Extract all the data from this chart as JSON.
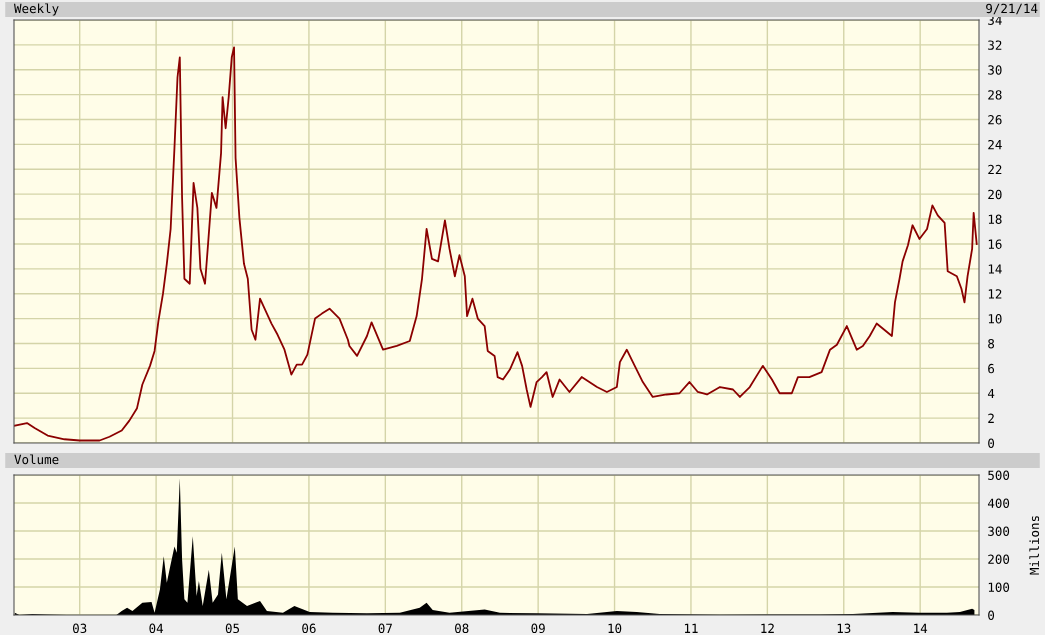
{
  "chart_data": [
    {
      "type": "line",
      "title": "Weekly",
      "annotations": [
        "9/21/14"
      ],
      "tick_labels": "y",
      "grid": true,
      "xlim": [
        2002.14,
        2014.77
      ],
      "xticks": [
        {
          "value": 2003,
          "label": null
        },
        {
          "value": 2004,
          "label": null
        },
        {
          "value": 2005,
          "label": null
        },
        {
          "value": 2006,
          "label": null
        },
        {
          "value": 2007,
          "label": null
        },
        {
          "value": 2008,
          "label": null
        },
        {
          "value": 2009,
          "label": null
        },
        {
          "value": 2010,
          "label": null
        },
        {
          "value": 2011,
          "label": null
        },
        {
          "value": 2012,
          "label": null
        },
        {
          "value": 2013,
          "label": null
        },
        {
          "value": 2014,
          "label": null
        }
      ],
      "ylim": [
        0,
        34
      ],
      "yticks": [
        0,
        2,
        4,
        6,
        8,
        10,
        12,
        14,
        16,
        18,
        20,
        22,
        24,
        26,
        28,
        30,
        32,
        34
      ],
      "x": [
        2002.15,
        2002.31,
        2002.41,
        2002.58,
        2002.8,
        2003.0,
        2003.26,
        2003.39,
        2003.55,
        2003.65,
        2003.75,
        2003.82,
        2003.92,
        2003.98,
        2004.03,
        2004.09,
        2004.14,
        2004.19,
        2004.24,
        2004.28,
        2004.31,
        2004.34,
        2004.37,
        2004.44,
        2004.49,
        2004.54,
        2004.58,
        2004.64,
        2004.68,
        2004.73,
        2004.79,
        2004.85,
        2004.87,
        2004.91,
        2004.95,
        2004.99,
        2005.02,
        2005.04,
        2005.09,
        2005.15,
        2005.2,
        2005.25,
        2005.3,
        2005.36,
        2005.42,
        2005.51,
        2005.59,
        2005.68,
        2005.77,
        2005.84,
        2005.91,
        2005.98,
        2006.08,
        2006.17,
        2006.27,
        2006.4,
        2006.51,
        2006.53,
        2006.63,
        2006.76,
        2006.82,
        2006.97,
        2007.15,
        2007.32,
        2007.41,
        2007.48,
        2007.54,
        2007.61,
        2007.69,
        2007.78,
        2007.84,
        2007.91,
        2007.97,
        2008.04,
        2008.07,
        2008.14,
        2008.21,
        2008.3,
        2008.34,
        2008.43,
        2008.47,
        2008.54,
        2008.63,
        2008.73,
        2008.79,
        2008.85,
        2008.9,
        2008.98,
        2009.05,
        2009.11,
        2009.19,
        2009.28,
        2009.41,
        2009.57,
        2009.77,
        2009.9,
        2010.03,
        2010.07,
        2010.16,
        2010.24,
        2010.37,
        2010.5,
        2010.68,
        2010.85,
        2010.98,
        2011.09,
        2011.21,
        2011.38,
        2011.55,
        2011.64,
        2011.77,
        2011.94,
        2012.06,
        2012.16,
        2012.32,
        2012.4,
        2012.55,
        2012.71,
        2012.82,
        2012.91,
        2013.04,
        2013.17,
        2013.25,
        2013.34,
        2013.43,
        2013.63,
        2013.67,
        2013.73,
        2013.77,
        2013.84,
        2013.9,
        2013.99,
        2014.09,
        2014.16,
        2014.23,
        2014.32,
        2014.36,
        2014.48,
        2014.54,
        2014.58,
        2014.62,
        2014.68,
        2014.7,
        2014.74
      ],
      "series": [
        {
          "color": "#8b0000",
          "values": [
            1.4,
            1.6,
            1.2,
            0.6,
            0.3,
            0.2,
            0.2,
            0.5,
            1.0,
            1.8,
            2.8,
            4.7,
            6.2,
            7.4,
            9.8,
            12.0,
            14.4,
            17.2,
            23.7,
            29.4,
            31.0,
            19.7,
            13.2,
            12.8,
            20.9,
            18.9,
            14.0,
            12.8,
            16.0,
            20.1,
            18.9,
            23.3,
            27.8,
            25.3,
            27.8,
            31.0,
            31.8,
            22.9,
            18.1,
            14.4,
            13.2,
            9.1,
            8.3,
            11.6,
            10.8,
            9.6,
            8.7,
            7.5,
            5.5,
            6.3,
            6.3,
            7.1,
            10.0,
            10.4,
            10.8,
            10.0,
            8.3,
            7.8,
            7.0,
            8.6,
            9.7,
            7.5,
            7.8,
            8.2,
            10.2,
            13.2,
            17.2,
            14.8,
            14.6,
            17.9,
            15.6,
            13.4,
            15.1,
            13.4,
            10.2,
            11.6,
            10.0,
            9.4,
            7.4,
            7.0,
            5.3,
            5.1,
            5.9,
            7.3,
            6.2,
            4.3,
            2.9,
            4.9,
            5.3,
            5.7,
            3.7,
            5.1,
            4.1,
            5.3,
            4.5,
            4.1,
            4.5,
            6.5,
            7.5,
            6.5,
            4.9,
            3.7,
            3.9,
            4.0,
            4.9,
            4.1,
            3.9,
            4.5,
            4.3,
            3.7,
            4.5,
            6.2,
            5.1,
            4.0,
            4.0,
            5.3,
            5.3,
            5.7,
            7.5,
            7.9,
            9.4,
            7.5,
            7.8,
            8.6,
            9.6,
            8.6,
            11.3,
            13.2,
            14.6,
            15.9,
            17.5,
            16.4,
            17.2,
            19.1,
            18.3,
            17.7,
            13.8,
            13.4,
            12.4,
            11.3,
            13.4,
            15.6,
            18.5,
            16.0
          ]
        }
      ]
    },
    {
      "type": "area",
      "title": "Volume",
      "ylabel": "Millions",
      "grid": true,
      "xlim": [
        2002.14,
        2014.77
      ],
      "xticks": [
        {
          "value": 2003,
          "label": "03"
        },
        {
          "value": 2004,
          "label": "04"
        },
        {
          "value": 2005,
          "label": "05"
        },
        {
          "value": 2006,
          "label": "06"
        },
        {
          "value": 2007,
          "label": "07"
        },
        {
          "value": 2008,
          "label": "08"
        },
        {
          "value": 2009,
          "label": "09"
        },
        {
          "value": 2010,
          "label": "10"
        },
        {
          "value": 2011,
          "label": "11"
        },
        {
          "value": 2012,
          "label": "12"
        },
        {
          "value": 2013,
          "label": "13"
        },
        {
          "value": 2014,
          "label": "14"
        }
      ],
      "ylim": [
        0,
        500
      ],
      "yticks": [
        0,
        100,
        200,
        300,
        400,
        500
      ],
      "x": [
        2002.15,
        2002.21,
        2002.38,
        2002.57,
        2002.83,
        2003.48,
        2003.55,
        2003.62,
        2003.69,
        2003.82,
        2003.94,
        2003.98,
        2004.05,
        2004.1,
        2004.14,
        2004.18,
        2004.24,
        2004.27,
        2004.31,
        2004.34,
        2004.37,
        2004.41,
        2004.48,
        2004.53,
        2004.56,
        2004.61,
        2004.69,
        2004.74,
        2004.81,
        2004.86,
        2004.92,
        2005.03,
        2005.07,
        2005.19,
        2005.36,
        2005.45,
        2005.66,
        2005.81,
        2006.01,
        2006.31,
        2006.76,
        2007.19,
        2007.45,
        2007.54,
        2007.62,
        2007.84,
        2008.3,
        2008.5,
        2008.98,
        2009.64,
        2010.03,
        2010.29,
        2010.59,
        2011.38,
        2012.69,
        2013.12,
        2013.64,
        2013.99,
        2014.35,
        2014.52,
        2014.68,
        2014.71
      ],
      "series": [
        {
          "color": "#000000",
          "values": [
            8,
            0,
            4,
            2,
            0,
            0,
            14,
            26,
            14,
            44,
            46,
            8,
            91,
            210,
            115,
            168,
            245,
            222,
            488,
            198,
            56,
            44,
            281,
            68,
            121,
            32,
            162,
            44,
            73,
            222,
            56,
            245,
            56,
            32,
            50,
            14,
            8,
            32,
            11,
            8,
            6,
            8,
            26,
            44,
            18,
            8,
            20,
            8,
            6,
            4,
            14,
            11,
            4,
            1,
            2,
            4,
            11,
            8,
            8,
            11,
            22,
            18
          ]
        }
      ]
    }
  ]
}
